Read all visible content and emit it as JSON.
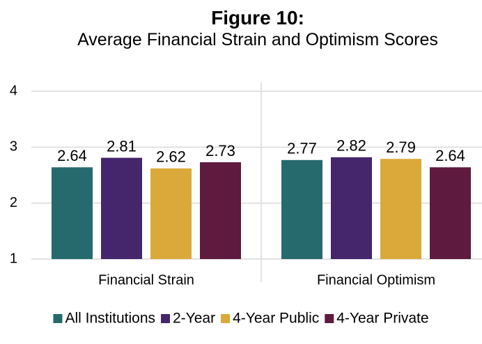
{
  "chart_data": {
    "type": "bar",
    "title": "Figure 10:",
    "subtitle": "Average Financial Strain and Optimism Scores",
    "categories": [
      "Financial Strain",
      "Financial Optimism"
    ],
    "series": [
      {
        "name": "All Institutions",
        "color": "#266a6e",
        "values": [
          2.64,
          2.77
        ]
      },
      {
        "name": "2-Year",
        "color": "#45256b",
        "values": [
          2.81,
          2.82
        ]
      },
      {
        "name": "4-Year Public",
        "color": "#dba93a",
        "values": [
          2.62,
          2.79
        ]
      },
      {
        "name": "4-Year Private",
        "color": "#5e1a3f",
        "values": [
          2.73,
          2.64
        ]
      }
    ],
    "ylim": [
      1,
      4
    ],
    "yticks": [
      1,
      2,
      3,
      4
    ],
    "grid": true,
    "legend": "bottom"
  }
}
